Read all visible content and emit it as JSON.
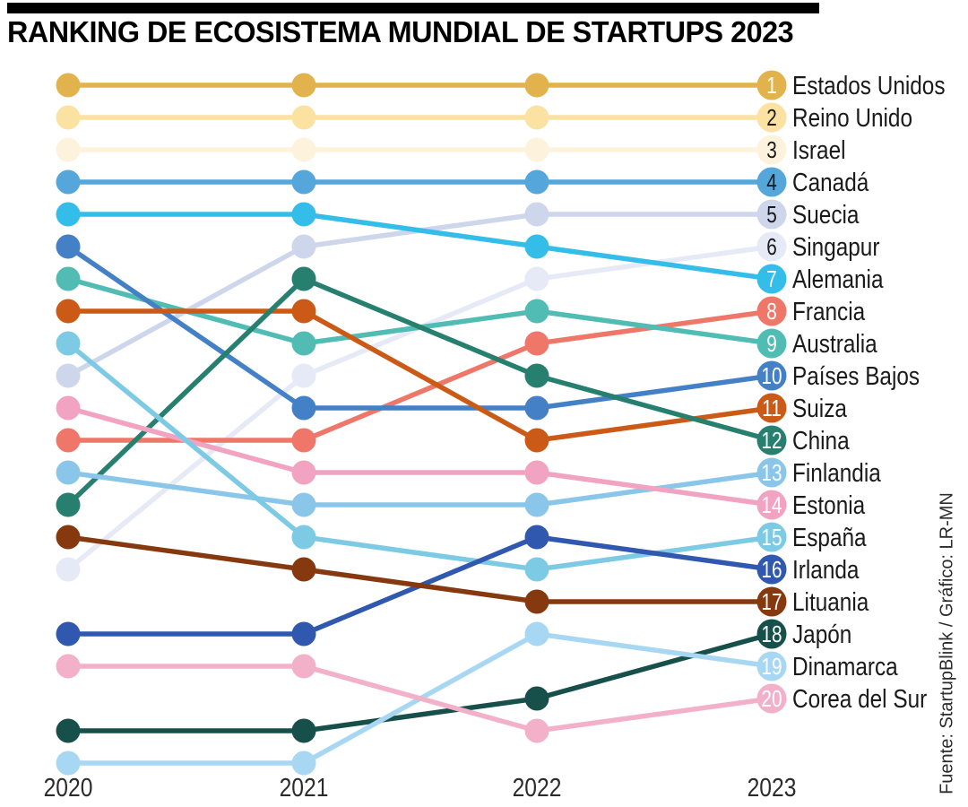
{
  "title": "RANKING DE ECOSISTEMA MUNDIAL DE STARTUPS 2023",
  "source": "Fuente: StartupBlink / Gráfico: LR-MN",
  "years": [
    "2020",
    "2021",
    "2022",
    "2023"
  ],
  "chart_data": {
    "type": "line",
    "subtype": "bump-ranking",
    "title": "RANKING DE ECOSISTEMA MUNDIAL DE STARTUPS 2023",
    "x": [
      "2020",
      "2021",
      "2022",
      "2023"
    ],
    "xlabel": "",
    "ylabel": "",
    "ylim": [
      1,
      22
    ],
    "y_inverted": true,
    "grid": false,
    "legend_position": "right",
    "series": [
      {
        "rank_2023": 1,
        "name": "Estados Unidos",
        "color": "#e2b24c",
        "number_color": "#ffffff",
        "ranks": [
          1,
          1,
          1,
          1
        ]
      },
      {
        "rank_2023": 2,
        "name": "Reino Unido",
        "color": "#fbe2a2",
        "number_color": "#1a1a1a",
        "ranks": [
          2,
          2,
          2,
          2
        ]
      },
      {
        "rank_2023": 3,
        "name": "Israel",
        "color": "#fdf2dc",
        "number_color": "#1a1a1a",
        "ranks": [
          3,
          3,
          3,
          3
        ]
      },
      {
        "rank_2023": 4,
        "name": "Canadá",
        "color": "#55a7db",
        "number_color": "#1a1a1a",
        "ranks": [
          4,
          4,
          4,
          4
        ]
      },
      {
        "rank_2023": 5,
        "name": "Suecia",
        "color": "#cdd6ea",
        "number_color": "#1a1a1a",
        "ranks": [
          10,
          6,
          5,
          5
        ]
      },
      {
        "rank_2023": 6,
        "name": "Singapur",
        "color": "#e6e9f6",
        "number_color": "#1a1a1a",
        "ranks": [
          16,
          10,
          7,
          6
        ]
      },
      {
        "rank_2023": 7,
        "name": "Alemania",
        "color": "#35bde9",
        "number_color": "#ffffff",
        "ranks": [
          5,
          5,
          6,
          7
        ]
      },
      {
        "rank_2023": 8,
        "name": "Francia",
        "color": "#ef776a",
        "number_color": "#ffffff",
        "ranks": [
          12,
          12,
          9,
          8
        ]
      },
      {
        "rank_2023": 9,
        "name": "Australia",
        "color": "#50bcb4",
        "number_color": "#ffffff",
        "ranks": [
          7,
          9,
          8,
          9
        ]
      },
      {
        "rank_2023": 10,
        "name": "Países Bajos",
        "color": "#4480c6",
        "number_color": "#ffffff",
        "ranks": [
          6,
          11,
          11,
          10
        ]
      },
      {
        "rank_2023": 11,
        "name": "Suiza",
        "color": "#cc5a17",
        "number_color": "#ffffff",
        "ranks": [
          8,
          8,
          12,
          11
        ]
      },
      {
        "rank_2023": 12,
        "name": "China",
        "color": "#27806f",
        "number_color": "#ffffff",
        "ranks": [
          14,
          7,
          10,
          12
        ]
      },
      {
        "rank_2023": 13,
        "name": "Finlandia",
        "color": "#8ac6ea",
        "number_color": "#ffffff",
        "ranks": [
          13,
          14,
          14,
          13
        ]
      },
      {
        "rank_2023": 14,
        "name": "Estonia",
        "color": "#f2a3c1",
        "number_color": "#ffffff",
        "ranks": [
          11,
          13,
          13,
          14
        ]
      },
      {
        "rank_2023": 15,
        "name": "España",
        "color": "#7dcae4",
        "number_color": "#ffffff",
        "ranks": [
          9,
          15,
          16,
          15
        ]
      },
      {
        "rank_2023": 16,
        "name": "Irlanda",
        "color": "#2f58ae",
        "number_color": "#ffffff",
        "ranks": [
          18,
          18,
          15,
          16
        ]
      },
      {
        "rank_2023": 17,
        "name": "Lituania",
        "color": "#86380f",
        "number_color": "#ffffff",
        "ranks": [
          15,
          16,
          17,
          17
        ]
      },
      {
        "rank_2023": 18,
        "name": "Japón",
        "color": "#17504a",
        "number_color": "#ffffff",
        "ranks": [
          21,
          21,
          20,
          18
        ]
      },
      {
        "rank_2023": 19,
        "name": "Dinamarca",
        "color": "#a8d7f3",
        "number_color": "#ffffff",
        "ranks": [
          22,
          22,
          18,
          19
        ]
      },
      {
        "rank_2023": 20,
        "name": "Corea del Sur",
        "color": "#f3b0c9",
        "number_color": "#ffffff",
        "ranks": [
          19,
          19,
          21,
          20
        ]
      }
    ]
  },
  "colors": {
    "background": "#ffffff",
    "title_bar": "#000000",
    "title_text": "#000000",
    "axis_label_text": "#2b2b2b",
    "country_label_text": "#1a1a1a"
  }
}
